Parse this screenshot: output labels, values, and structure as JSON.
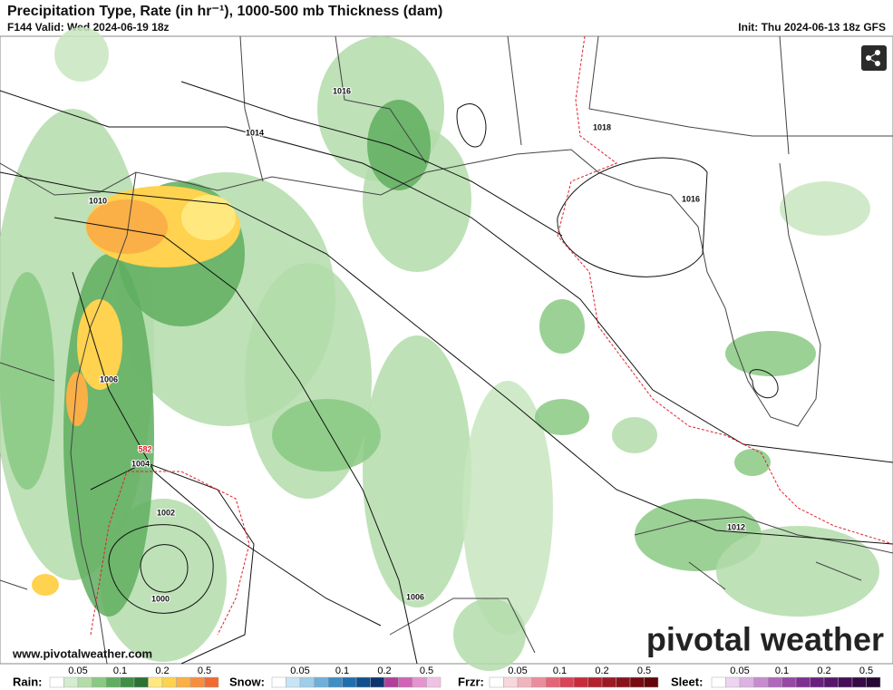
{
  "header": {
    "title": "Precipitation Type, Rate (in hr⁻¹), 1000-500 mb Thickness (dam)",
    "valid": "F144 Valid: Wed 2024-06-19 18z",
    "init": "Init: Thu 2024-06-13 18z GFS"
  },
  "map": {
    "isobar_labels": [
      "1016",
      "1014",
      "1018",
      "1016",
      "1010",
      "1006",
      "1004",
      "1002",
      "1000",
      "1012",
      "1006"
    ],
    "thickness_label": "582"
  },
  "website": "www.pivotalweather.com",
  "watermark": "pivotal weather",
  "legend": [
    {
      "label": "Rain:",
      "ticks": [
        "0.05",
        "0.1",
        "0.2",
        "0.5"
      ],
      "colors": [
        "#ffffff",
        "#d4ecd0",
        "#b3dcaa",
        "#8ac983",
        "#5fae5f",
        "#3f8f45",
        "#2a7334",
        "#ffe97f",
        "#ffd24f",
        "#fbaf47",
        "#f58f3e",
        "#f26a33"
      ]
    },
    {
      "label": "Snow:",
      "ticks": [
        "0.05",
        "0.1",
        "0.2",
        "0.5"
      ],
      "colors": [
        "#ffffff",
        "#c8e4f4",
        "#a0cde9",
        "#6fb0d9",
        "#3f8ec4",
        "#1f6fae",
        "#114f8e",
        "#0b3470",
        "#b13f9b",
        "#d064b5",
        "#e494d0",
        "#f1c1e4"
      ]
    },
    {
      "label": "Frzr:",
      "ticks": [
        "0.05",
        "0.1",
        "0.2",
        "0.5"
      ],
      "colors": [
        "#ffffff",
        "#f7d7dc",
        "#f1b4bf",
        "#ea8d9c",
        "#e26578",
        "#d84458",
        "#c72c3c",
        "#b3222d",
        "#9e1a22",
        "#8a131a",
        "#760c12",
        "#62060b"
      ]
    },
    {
      "label": "Sleet:",
      "ticks": [
        "0.05",
        "0.1",
        "0.2",
        "0.5"
      ],
      "colors": [
        "#ffffff",
        "#ecd5ef",
        "#dab3e0",
        "#c58dcd",
        "#ae69b9",
        "#9549a5",
        "#7f3192",
        "#6a207f",
        "#58166b",
        "#460f58",
        "#350a45",
        "#260633"
      ]
    }
  ]
}
